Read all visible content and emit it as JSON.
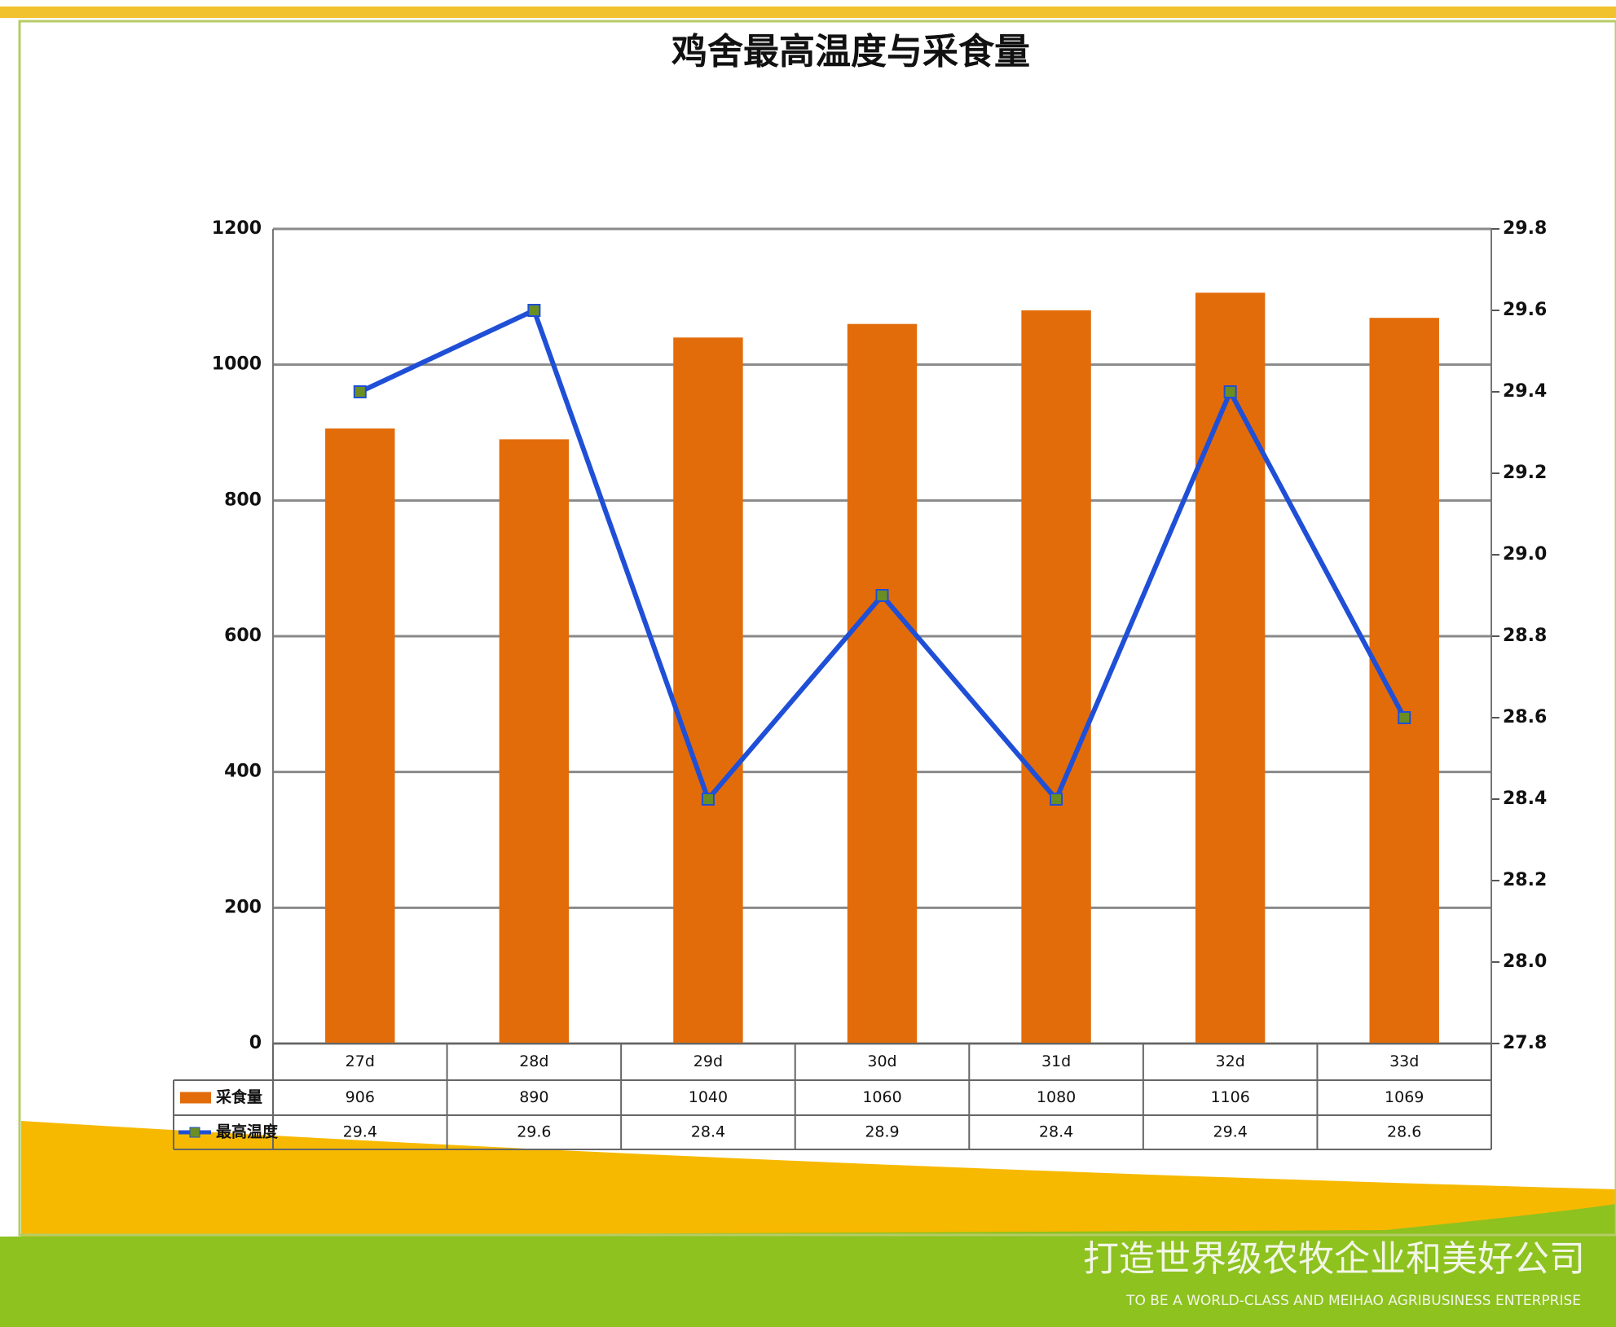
{
  "chart_data": {
    "type": "bar_line",
    "title": "鸡舍最高温度与采食量",
    "categories": [
      "27d",
      "28d",
      "29d",
      "30d",
      "31d",
      "32d",
      "33d"
    ],
    "series": [
      {
        "name": "采食量",
        "color": "#e36c0a",
        "values": [
          906,
          890,
          1040,
          1060,
          1080,
          1106,
          1069
        ]
      },
      {
        "name": "最高温度",
        "color": "#1f4fd6",
        "axis": "y2",
        "values": [
          29.4,
          29.6,
          28.4,
          28.9,
          28.4,
          29.4,
          28.6
        ]
      }
    ],
    "ylim": [
      0,
      1200
    ],
    "yticks": [
      0,
      200,
      400,
      600,
      800,
      1000,
      1200
    ],
    "y2lim": [
      27.8,
      29.8
    ],
    "y2ticks": [
      27.8,
      {
        "value": 28,
        "label": "28.0"
      },
      28.2,
      28.4,
      28.6,
      28.8,
      {
        "value": 29,
        "label": "29.0"
      },
      29.2,
      29.4,
      29.6,
      29.8
    ],
    "grid": true
  },
  "footer": {
    "slogan": "打造世界级农牧企业和美好公司",
    "slogan_en": "TO BE A WORLD-CLASS AND MEIHAO AGRIBUSINESS ENTERPRISE"
  }
}
